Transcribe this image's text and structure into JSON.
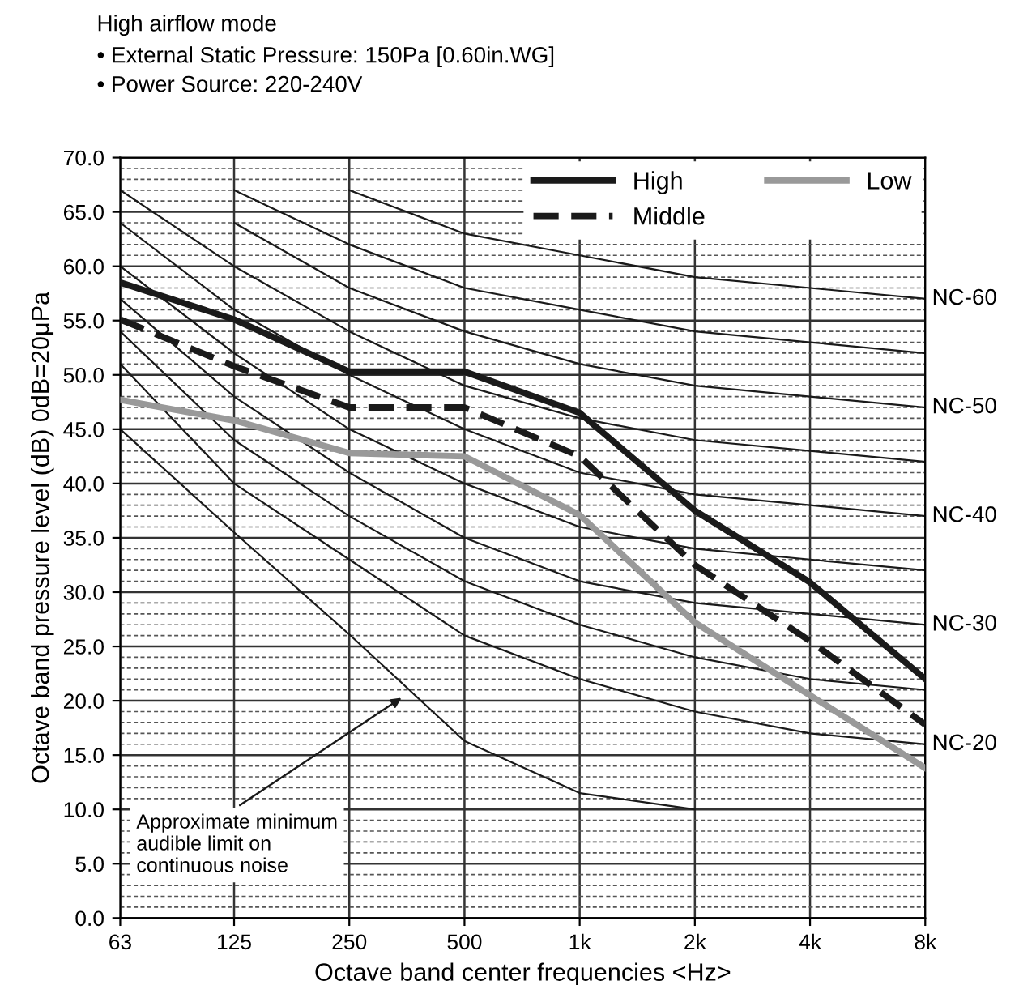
{
  "chart_data": {
    "type": "line",
    "title": "High airflow mode",
    "subtitle": "• External Static Pressure: 150Pa [0.60in.WG]\n• Power Source: 220-240V",
    "xlabel": "Octave band center frequencies <Hz>",
    "ylabel": "Octave band pressure level (dB) 0dB=20μPa",
    "x": [
      63,
      125,
      250,
      500,
      1000,
      2000,
      4000,
      8000
    ],
    "log": "x",
    "xlim": [
      63,
      8000
    ],
    "xticks": [
      63,
      125,
      250,
      500,
      {
        "value": 1000,
        "label": "1k"
      },
      {
        "value": 2000,
        "label": "2k"
      },
      {
        "value": 4000,
        "label": "4k"
      },
      {
        "value": 8000,
        "label": "8k"
      }
    ],
    "ylim": [
      0,
      70
    ],
    "yticks": [
      {
        "value": 0,
        "label": "0.0"
      },
      {
        "value": 5,
        "label": "5.0"
      },
      {
        "value": 10,
        "label": "10.0"
      },
      {
        "value": 15,
        "label": "15.0"
      },
      {
        "value": 20,
        "label": "20.0"
      },
      {
        "value": 25,
        "label": "25.0"
      },
      {
        "value": 30,
        "label": "30.0"
      },
      {
        "value": 35,
        "label": "35.0"
      },
      {
        "value": 40,
        "label": "40.0"
      },
      {
        "value": 45,
        "label": "45.0"
      },
      {
        "value": 50,
        "label": "50.0"
      },
      {
        "value": 55,
        "label": "55.0"
      },
      {
        "value": 60,
        "label": "60.0"
      },
      {
        "value": 65,
        "label": "65.0"
      },
      {
        "value": 70,
        "label": "70.0"
      }
    ],
    "grid": true,
    "legend": "top right",
    "marker": "none",
    "series": [
      {
        "name": "High",
        "color": "#1a1a1a",
        "line_style": "solid",
        "values": [
          58.5,
          55.1,
          50.3,
          50.3,
          46.5,
          37.5,
          30.9,
          22.0
        ]
      },
      {
        "name": "Middle",
        "color": "#1a1a1a",
        "line_style": "dashed",
        "values": [
          55.1,
          50.8,
          47.0,
          47.0,
          42.5,
          32.5,
          25.5,
          17.8
        ]
      },
      {
        "name": "Low",
        "color": "#999999",
        "line_style": "solid",
        "values": [
          47.7,
          45.8,
          42.8,
          42.5,
          37.1,
          27.2,
          20.5,
          13.8
        ]
      },
      {
        "name": "NC-20",
        "color": "#1a1a1a",
        "line_style": "solid",
        "values": [
          51,
          40,
          33,
          26,
          22,
          19,
          17,
          16
        ]
      },
      {
        "color": "#1a1a1a",
        "line_style": "solid",
        "values": [
          54,
          44,
          37,
          31,
          27,
          24,
          22,
          21
        ]
      },
      {
        "name": "NC-30",
        "color": "#1a1a1a",
        "line_style": "solid",
        "values": [
          57,
          48,
          41,
          35,
          31,
          29,
          28,
          27
        ]
      },
      {
        "color": "#1a1a1a",
        "line_style": "solid",
        "values": [
          60,
          52,
          45,
          40,
          36,
          34,
          33,
          32
        ]
      },
      {
        "name": "NC-40",
        "color": "#1a1a1a",
        "line_style": "solid",
        "values": [
          64,
          56,
          50,
          45,
          41,
          39,
          38,
          37
        ]
      },
      {
        "color": "#1a1a1a",
        "line_style": "solid",
        "values": [
          67,
          60,
          54,
          49,
          46,
          44,
          43,
          42
        ]
      },
      {
        "name": "NC-50",
        "color": "#1a1a1a",
        "line_style": "solid",
        "values": [
          null,
          64,
          58,
          54,
          51,
          49,
          48,
          47
        ]
      },
      {
        "color": "#1a1a1a",
        "line_style": "solid",
        "values": [
          null,
          67,
          62,
          58,
          56,
          54,
          53,
          52
        ]
      },
      {
        "name": "NC-60",
        "color": "#1a1a1a",
        "line_style": "solid",
        "values": [
          null,
          null,
          67,
          63,
          61,
          59,
          58,
          57
        ]
      },
      {
        "color": "#1a1a1a",
        "line_style": "solid",
        "values": [
          45,
          35.5,
          26.1,
          16.3,
          11.5,
          10.0,
          null,
          null
        ]
      }
    ],
    "annotations": [
      {
        "text": "Approximate minimum\naudible limit on\ncontinuous noise",
        "x": 350,
        "y": 20.5
      }
    ]
  }
}
